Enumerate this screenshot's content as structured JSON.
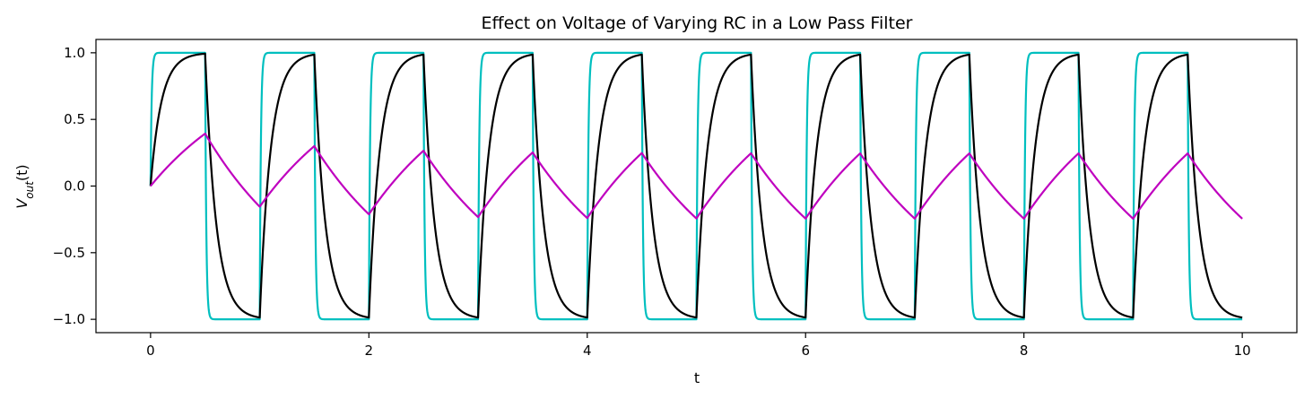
{
  "chart_data": {
    "type": "line",
    "title": "Effect on Voltage of Varying RC in a Low Pass Filter",
    "xlabel": "t",
    "ylabel": "V_out(t)",
    "xlim": [
      -0.5,
      10.5
    ],
    "ylim": [
      -1.1,
      1.1
    ],
    "x_ticks": [
      0,
      2,
      4,
      6,
      8,
      10
    ],
    "x_tick_labels": [
      "0",
      "2",
      "4",
      "6",
      "8",
      "10"
    ],
    "y_ticks": [
      1.0,
      0.5,
      0.0,
      -0.5,
      -1.0
    ],
    "y_tick_labels": [
      "1.0",
      "0.5",
      "0.0",
      "−0.5",
      "−1.0"
    ],
    "grid": false,
    "legend": "none",
    "input_signal": {
      "shape": "square",
      "amplitude": 1,
      "period": 1,
      "high_from": 0,
      "high_until": 0.5,
      "t_start": 0,
      "t_end": 10
    },
    "series": [
      {
        "color": "#00bfbf",
        "rc": 0.01
      },
      {
        "color": "#000000",
        "rc": 0.1
      },
      {
        "color": "#bf00bf",
        "rc": 1.0
      }
    ]
  }
}
